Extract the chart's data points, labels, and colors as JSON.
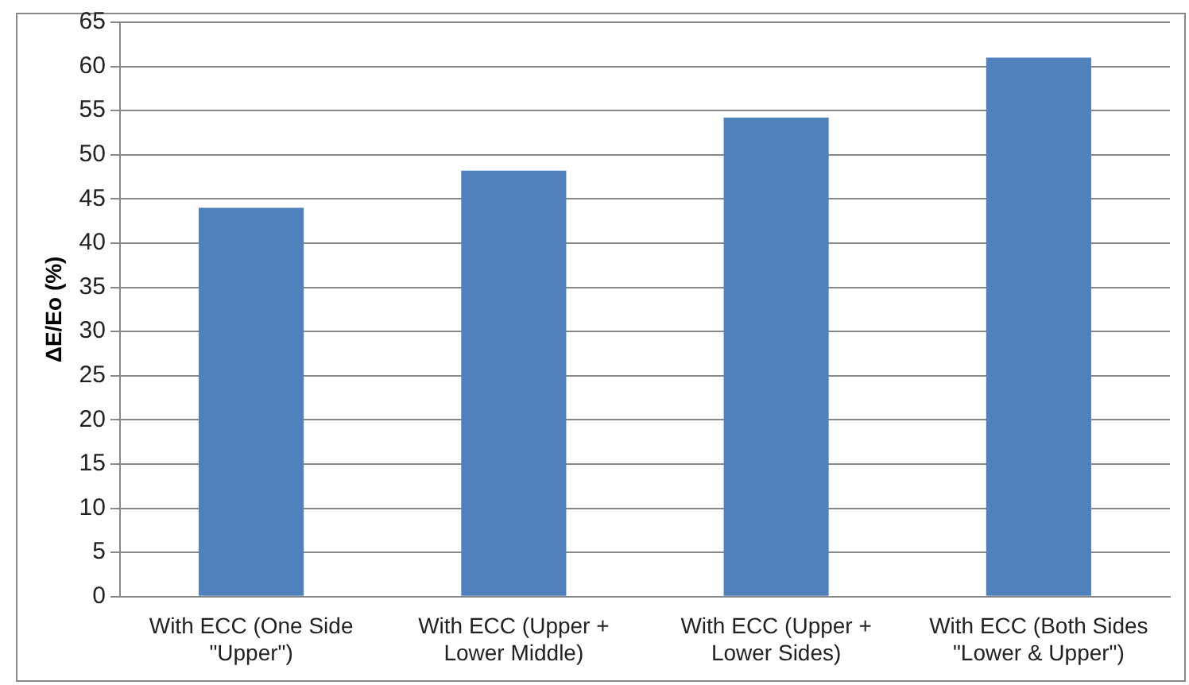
{
  "chart_data": {
    "type": "bar",
    "ylabel": "ΔE/Eo (%)",
    "categories": [
      "With ECC (One Side \"Upper\")",
      "With ECC (Upper + Lower Middle)",
      "With ECC (Upper + Lower Sides)",
      "With ECC (Both Sides \"Lower & Upper\")"
    ],
    "values": [
      44,
      48.2,
      54.2,
      61
    ],
    "color": "#4f81bd",
    "ylim": [
      0,
      65
    ],
    "yticks": [
      0,
      5,
      10,
      15,
      20,
      25,
      30,
      35,
      40,
      45,
      50,
      55,
      60,
      65
    ],
    "grid": "y",
    "legend": false
  }
}
